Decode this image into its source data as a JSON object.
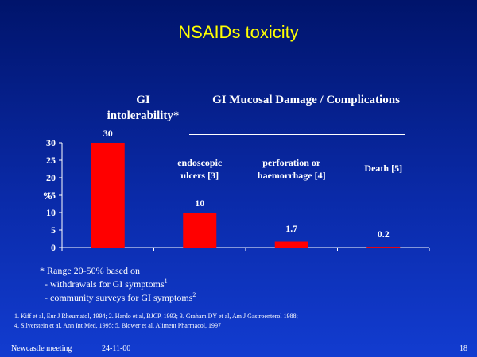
{
  "slide": {
    "title": "NSAIDs toxicity",
    "header_left_line1": "GI",
    "header_left_line2": "intolerability*",
    "header_right": "GI Mucosal Damage / Complications",
    "footnote_line1": "* Range 20-50% based on",
    "footnote_line2_text": "- withdrawals for GI symptoms",
    "footnote_line2_sup": "1",
    "footnote_line3_text": "- community surveys for GI symptoms",
    "footnote_line3_sup": "2",
    "references_line1": "1. Kiff et al, Eur J Rheumatol, 1994; 2. Hardo et al, BJCP, 1993; 3. Graham DY et al, Am J Gastroenterol 1988;",
    "references_line2": "4. Silverstein et al, Ann Int Med, 1995; 5. Blower et al, Aliment Pharmacol, 1997",
    "footer_left": "Newcastle meeting",
    "footer_date": "24-11-00",
    "footer_page": "18"
  },
  "colors": {
    "bar": "#ff0000",
    "title": "#ffff00",
    "text": "#ffffff"
  },
  "chart_data": {
    "type": "bar",
    "categories": [
      "",
      "",
      "",
      ""
    ],
    "category_annotations": [
      [],
      [
        "endoscopic",
        "ulcers [3]"
      ],
      [
        "perforation or",
        "haemorrhage [4]"
      ],
      [
        "Death [5]"
      ]
    ],
    "values": [
      30,
      10,
      1.7,
      0.2
    ],
    "data_labels": [
      "30",
      "10",
      "1.7",
      "0.2"
    ],
    "ylabel": "%",
    "ylim": [
      0,
      30
    ],
    "yticks": [
      0,
      5,
      10,
      15,
      20,
      25,
      30
    ],
    "grid": false,
    "legend": "none"
  }
}
